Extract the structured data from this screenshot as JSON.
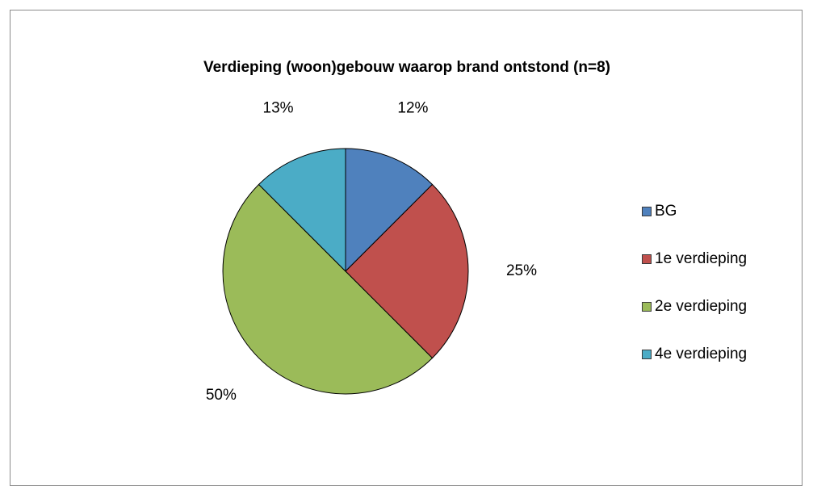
{
  "chart_data": {
    "type": "pie",
    "title": "Verdieping (woon)gebouw waarop brand ontstond (n=8)",
    "categories": [
      "BG",
      "1e verdieping",
      "2e verdieping",
      "4e verdieping"
    ],
    "values": [
      12.5,
      25,
      50,
      12.5
    ],
    "labels": [
      "12%",
      "25%",
      "50%",
      "13%"
    ],
    "colors": [
      "#4f81bd",
      "#c0504d",
      "#9bbb59",
      "#4bacc6"
    ],
    "legend_position": "right"
  }
}
